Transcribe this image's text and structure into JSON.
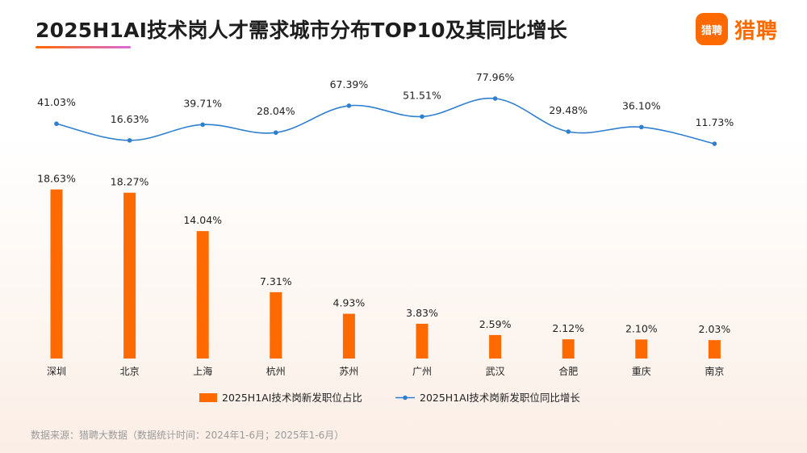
{
  "header": {
    "title": "2025H1AI技术岗人才需求城市分布TOP10及其同比增长",
    "logo_badge": "猎聘",
    "logo_text": "猎聘"
  },
  "colors": {
    "bar": "#ff6a00",
    "line": "#2e7fcf",
    "accent": "#ff6a00"
  },
  "chart_data": {
    "type": "bar",
    "categories": [
      "深圳",
      "北京",
      "上海",
      "杭州",
      "苏州",
      "广州",
      "武汉",
      "合肥",
      "重庆",
      "南京"
    ],
    "series": [
      {
        "name": "2025H1AI技术岗新发职位占比",
        "type": "bar",
        "values": [
          18.63,
          18.27,
          14.04,
          7.31,
          4.93,
          3.83,
          2.59,
          2.12,
          2.1,
          2.03
        ],
        "labels": [
          "18.63%",
          "18.27%",
          "14.04%",
          "7.31%",
          "4.93%",
          "3.83%",
          "2.59%",
          "2.12%",
          "2.10%",
          "2.03%"
        ]
      },
      {
        "name": "2025H1AI技术岗新发职位同比增长",
        "type": "line",
        "values": [
          41.03,
          16.63,
          39.71,
          28.04,
          67.39,
          51.51,
          77.96,
          29.48,
          36.1,
          11.73
        ],
        "labels": [
          "41.03%",
          "16.63%",
          "39.71%",
          "28.04%",
          "67.39%",
          "51.51%",
          "77.96%",
          "29.48%",
          "36.10%",
          "11.73%"
        ]
      }
    ],
    "legend_position": "bottom"
  },
  "footer": {
    "source": "数据来源：猎聘大数据（数据统计时间：2024年1-6月；2025年1-6月）"
  }
}
